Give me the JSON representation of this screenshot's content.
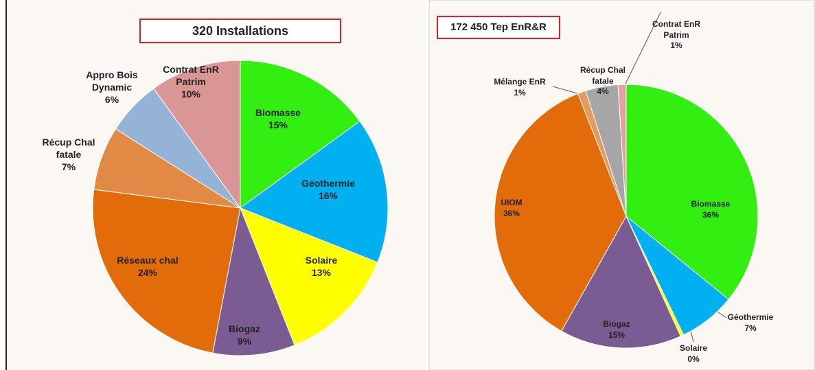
{
  "chart_data": [
    {
      "type": "pie",
      "title": "320  Installations",
      "categories": [
        "Biomasse",
        "Géothermie",
        "Solaire",
        "Biogaz",
        "Réseaux chal",
        "Récup Chal fatale",
        "Appro Bois Dynamic",
        "Contrat EnR Patrim"
      ],
      "values": [
        15,
        16,
        13,
        9,
        24,
        7,
        6,
        10
      ],
      "value_labels": [
        "15%",
        "16%",
        "13%",
        "9%",
        "24%",
        "7%",
        "6%",
        "10%"
      ],
      "colors": [
        "#33ee11",
        "#00b0f0",
        "#ffff00",
        "#7a5c93",
        "#e36c0a",
        "#e08a45",
        "#95b3d7",
        "#d99694"
      ]
    },
    {
      "type": "pie",
      "title": "172 450 Tep EnR&R",
      "categories": [
        "Biomasse",
        "Géothermie",
        "Solaire",
        "Biogaz",
        "UIOM",
        "Mélange EnR",
        "Récup Chal fatale",
        "Contrat EnR Patrim"
      ],
      "values": [
        36,
        7,
        0.4,
        15,
        36,
        1,
        4,
        1
      ],
      "value_labels": [
        "36%",
        "7%",
        "0%",
        "15%",
        "36%",
        "1%",
        "4%",
        "1%"
      ],
      "colors": [
        "#33ee11",
        "#00b0f0",
        "#ffff00",
        "#7a5c93",
        "#e36c0a",
        "#e39b60",
        "#a6a6a6",
        "#e6a0a0"
      ]
    }
  ]
}
